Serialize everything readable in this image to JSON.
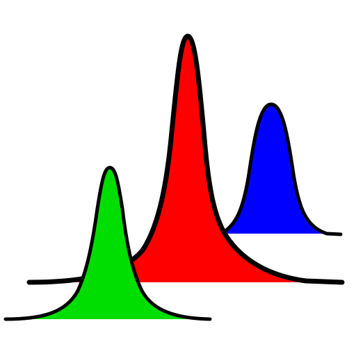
{
  "peaks": [
    {
      "name": "blue-peak",
      "color": "#0000ff"
    },
    {
      "name": "red-peak",
      "color": "#ff0000"
    },
    {
      "name": "green-peak",
      "color": "#00dd00"
    }
  ],
  "outline_color": "#000000"
}
